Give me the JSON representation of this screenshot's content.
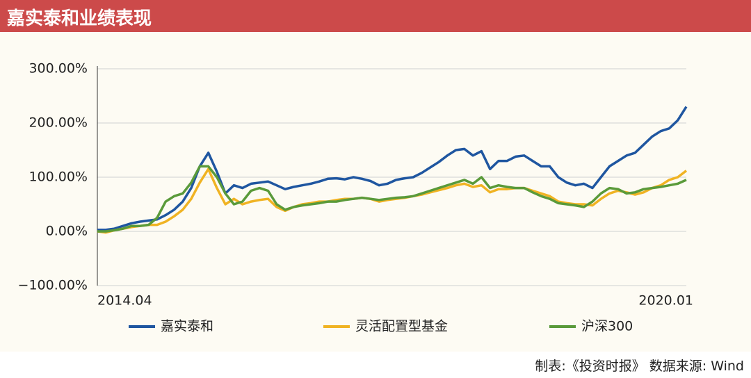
{
  "chart_data": {
    "type": "line",
    "title": "嘉实泰和业绩表现",
    "categories": [
      "2014.04",
      null,
      null,
      null,
      null,
      null,
      null,
      null,
      null,
      null,
      null,
      null,
      null,
      null,
      null,
      null,
      null,
      null,
      null,
      null,
      null,
      null,
      null,
      null,
      null,
      null,
      null,
      null,
      null,
      null,
      null,
      null,
      null,
      null,
      null,
      null,
      null,
      null,
      null,
      null,
      null,
      null,
      null,
      null,
      null,
      null,
      null,
      null,
      null,
      null,
      null,
      null,
      null,
      null,
      null,
      null,
      null,
      null,
      null,
      null,
      null,
      null,
      null,
      null,
      null,
      null,
      null,
      null,
      null,
      "2020.01"
    ],
    "series": [
      {
        "name": "嘉实泰和",
        "color": "#1f56a0",
        "values": [
          3,
          3,
          5,
          10,
          15,
          18,
          20,
          22,
          30,
          40,
          55,
          80,
          120,
          145,
          110,
          70,
          85,
          80,
          88,
          90,
          92,
          85,
          78,
          82,
          85,
          88,
          92,
          97,
          98,
          96,
          100,
          97,
          93,
          85,
          88,
          95,
          98,
          100,
          108,
          118,
          128,
          140,
          150,
          152,
          140,
          148,
          115,
          130,
          130,
          138,
          140,
          130,
          120,
          120,
          100,
          90,
          85,
          88,
          80,
          100,
          120,
          130,
          140,
          145,
          160,
          175,
          185,
          190,
          205,
          230
        ]
      },
      {
        "name": "灵活配置型基金",
        "color": "#f0b323",
        "values": [
          0,
          -2,
          2,
          5,
          8,
          10,
          12,
          12,
          18,
          28,
          40,
          60,
          90,
          115,
          80,
          50,
          60,
          50,
          55,
          58,
          60,
          45,
          38,
          45,
          50,
          52,
          55,
          55,
          58,
          60,
          60,
          62,
          60,
          55,
          58,
          60,
          62,
          65,
          68,
          72,
          76,
          80,
          85,
          88,
          82,
          85,
          72,
          78,
          78,
          80,
          80,
          75,
          70,
          65,
          55,
          52,
          50,
          50,
          48,
          60,
          70,
          75,
          72,
          68,
          72,
          80,
          85,
          95,
          100,
          112
        ]
      },
      {
        "name": "沪深300",
        "color": "#5a9a3a",
        "values": [
          0,
          0,
          2,
          5,
          10,
          10,
          12,
          25,
          55,
          65,
          70,
          90,
          120,
          120,
          100,
          70,
          50,
          55,
          75,
          80,
          75,
          50,
          40,
          45,
          48,
          50,
          52,
          55,
          55,
          58,
          60,
          62,
          60,
          58,
          60,
          62,
          63,
          65,
          70,
          75,
          80,
          85,
          90,
          95,
          88,
          100,
          80,
          85,
          82,
          80,
          80,
          72,
          65,
          60,
          52,
          50,
          48,
          45,
          55,
          70,
          80,
          78,
          70,
          72,
          78,
          80,
          82,
          85,
          88,
          95
        ]
      }
    ],
    "ylim": [
      -100,
      300
    ],
    "yticks": [
      {
        "value": -100,
        "label": "−100.00%"
      },
      {
        "value": 0,
        "label": "0.00%"
      },
      {
        "value": 100,
        "label": "100.00%"
      },
      {
        "value": 200,
        "label": "200.00%"
      },
      {
        "value": 300,
        "label": "300.00%"
      }
    ],
    "grid": true
  },
  "footer": "制表:《投资时报》 数据来源: Wind"
}
